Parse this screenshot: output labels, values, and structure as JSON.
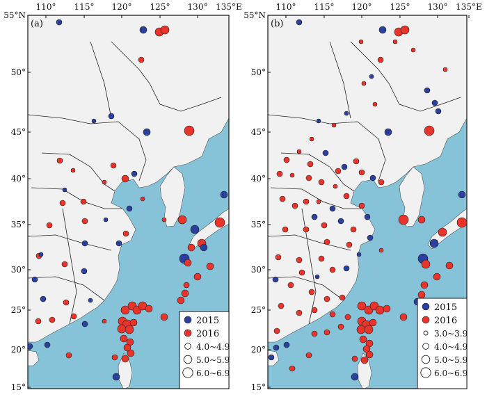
{
  "figure": {
    "panels": [
      {
        "label": "(a)",
        "lon_ticks": [
          "110°",
          "115°",
          "120°",
          "125°",
          "130°",
          "135°E"
        ],
        "lat_ticks": [
          "55°N",
          "50°",
          "45°",
          "40°",
          "35°",
          "30°",
          "25°",
          "20°",
          "15°"
        ],
        "legend": {
          "years": [
            {
              "label": "2015",
              "color": "#2b3f9e"
            },
            {
              "label": "2016",
              "color": "#e8342a"
            }
          ],
          "magnitudes": [
            "4.0~4.9",
            "5.0~5.9",
            "6.0~6.9"
          ]
        }
      },
      {
        "label": "(b)",
        "lon_ticks": [
          "110°",
          "115°",
          "120°",
          "125°",
          "130°",
          "135°E"
        ],
        "lat_ticks": [
          "55°N",
          "50°",
          "45°",
          "40°",
          "35°",
          "30°",
          "25°",
          "20°",
          "15°"
        ],
        "legend": {
          "years": [
            {
              "label": "2015",
              "color": "#2b3f9e"
            },
            {
              "label": "2016",
              "color": "#e8342a"
            }
          ],
          "magnitudes": [
            "3.0~3.9",
            "4.0~4.9",
            "5.0~5.9",
            "6.0~6.9"
          ]
        }
      }
    ],
    "colors": {
      "sea": "#86c3d8",
      "land": "#f1f1f1",
      "boundary": "#333333"
    }
  }
}
